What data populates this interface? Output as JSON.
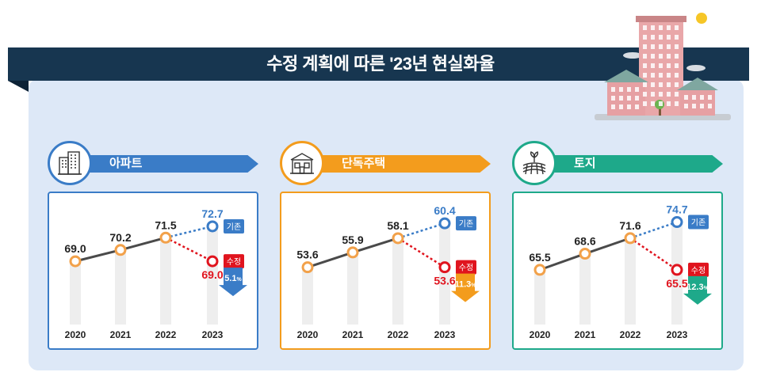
{
  "page": {
    "title": "수정 계획에 따른 '23년 현실화율"
  },
  "colors": {
    "navy": "#173650",
    "panel": "#dde8f7",
    "line": "#4a4a4a",
    "marker": "#f2a14a",
    "base_blue": "#3a7cc7",
    "revised_red": "#e0141e"
  },
  "sections": [
    {
      "key": "apartment",
      "label": "아파트",
      "icon": "apartment-building-icon",
      "color": "#3a7cc7",
      "change_color": "#3a7cc7",
      "change_label": "5.1",
      "change_unit": "%"
    },
    {
      "key": "house",
      "label": "단독주택",
      "icon": "house-icon",
      "color": "#f39c1d",
      "change_color": "#f39c1d",
      "change_label": "11.3",
      "change_unit": "%"
    },
    {
      "key": "land",
      "label": "토지",
      "icon": "farmland-icon",
      "color": "#1ea98a",
      "change_color": "#1ea98a",
      "change_label": "12.3",
      "change_unit": "%"
    }
  ],
  "legend": {
    "base": "기존",
    "revised": "수정"
  },
  "chart_data": [
    {
      "type": "line",
      "title": "아파트",
      "categories": [
        "2020",
        "2021",
        "2022",
        "2023"
      ],
      "actual": [
        69.0,
        70.2,
        71.5
      ],
      "series": [
        {
          "name": "기존",
          "values": [
            null,
            null,
            71.5,
            72.7
          ]
        },
        {
          "name": "수정",
          "values": [
            null,
            null,
            71.5,
            69.0
          ]
        }
      ],
      "change": "5.1%"
    },
    {
      "type": "line",
      "title": "단독주택",
      "categories": [
        "2020",
        "2021",
        "2022",
        "2023"
      ],
      "actual": [
        53.6,
        55.9,
        58.1
      ],
      "series": [
        {
          "name": "기존",
          "values": [
            null,
            null,
            58.1,
            60.4
          ]
        },
        {
          "name": "수정",
          "values": [
            null,
            null,
            58.1,
            53.6
          ]
        }
      ],
      "change": "11.3%"
    },
    {
      "type": "line",
      "title": "토지",
      "categories": [
        "2020",
        "2021",
        "2022",
        "2023"
      ],
      "actual": [
        65.5,
        68.6,
        71.6
      ],
      "series": [
        {
          "name": "기존",
          "values": [
            null,
            null,
            71.6,
            74.7
          ]
        },
        {
          "name": "수정",
          "values": [
            null,
            null,
            71.6,
            65.5
          ]
        }
      ],
      "change": "12.3%"
    }
  ]
}
